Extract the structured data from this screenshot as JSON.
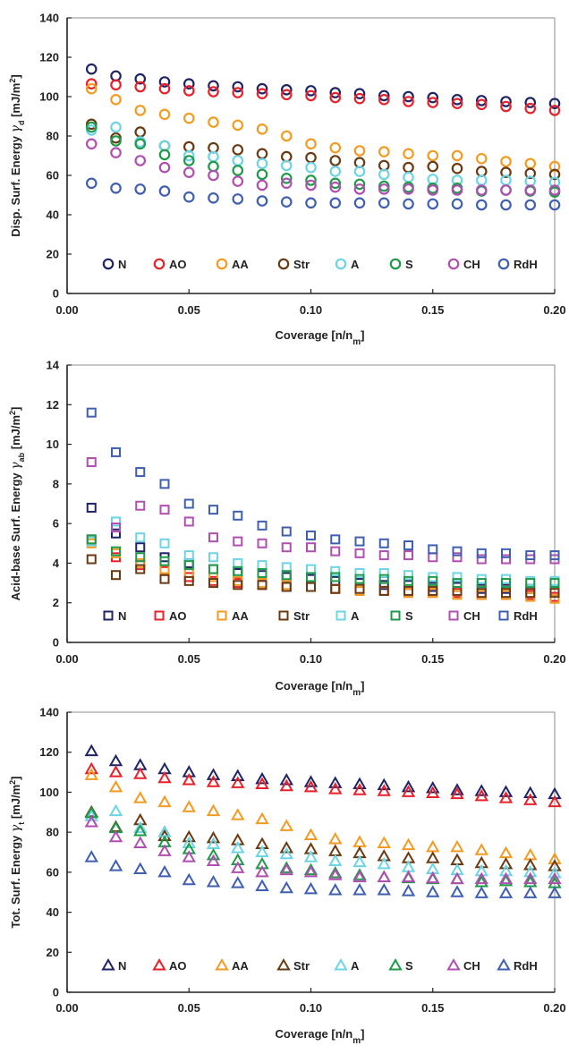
{
  "chart_data": [
    {
      "type": "scatter",
      "marker": "circle",
      "xlabel": "Coverage [n/n",
      "xlabel_sub": "m",
      "xlabel_end": "]",
      "ylabel": "Disp. Surf. Energy ",
      "ylabel_sym": "γ",
      "ylabel_sub": "d",
      "ylabel_end": " [mJ/m",
      "ylabel_sup": "2",
      "ylabel_close": "]",
      "xlim": [
        0,
        0.2
      ],
      "ylim": [
        0,
        140
      ],
      "xticks": [
        "0.00",
        "0.05",
        "0.10",
        "0.15",
        "0.20"
      ],
      "yticks": [
        "0",
        "20",
        "40",
        "60",
        "80",
        "100",
        "120",
        "140"
      ],
      "legend_position": "bottom-inside",
      "grid": false,
      "x": [
        0.01,
        0.02,
        0.03,
        0.04,
        0.05,
        0.06,
        0.07,
        0.08,
        0.09,
        0.1,
        0.11,
        0.12,
        0.13,
        0.14,
        0.15,
        0.16,
        0.17,
        0.18,
        0.19,
        0.2
      ],
      "series": [
        {
          "name": "N",
          "color": "#1f2466",
          "values": [
            114,
            110.5,
            109,
            107.5,
            106.5,
            105.5,
            105,
            104,
            103.5,
            103,
            102,
            101.5,
            100.5,
            100,
            99.5,
            98.5,
            98,
            97.5,
            97,
            96.5
          ]
        },
        {
          "name": "AO",
          "color": "#e8212a",
          "values": [
            106.5,
            106,
            105,
            104,
            103,
            102.5,
            102,
            101.5,
            101,
            100.5,
            99.5,
            99,
            98.5,
            97.5,
            97,
            96.5,
            96,
            95,
            94,
            93
          ]
        },
        {
          "name": "AA",
          "color": "#f39b21",
          "values": [
            104,
            98.5,
            93,
            91,
            89,
            87,
            85.5,
            83.5,
            80,
            76,
            74,
            72.5,
            72,
            71,
            70,
            70,
            68.5,
            67,
            66,
            64.5
          ]
        },
        {
          "name": "Str",
          "color": "#6b3a12",
          "values": [
            86,
            79,
            82,
            75,
            74.5,
            74,
            73,
            71,
            69.5,
            69,
            67.5,
            66.5,
            65,
            64,
            64.5,
            63.5,
            62,
            61.5,
            61,
            60.5
          ]
        },
        {
          "name": "A",
          "color": "#6dd3e6",
          "values": [
            83,
            84.5,
            77,
            75,
            70,
            69.5,
            67.5,
            66,
            65,
            64,
            62,
            62,
            60.5,
            59,
            58,
            57.5,
            57.5,
            57.5,
            57,
            56.5
          ]
        },
        {
          "name": "S",
          "color": "#1e9a4a",
          "values": [
            84.5,
            77.5,
            76,
            70.5,
            67.5,
            64.5,
            62.5,
            60.5,
            58.5,
            57.5,
            56,
            55.5,
            54.5,
            54,
            53.5,
            53.5,
            52,
            52.5,
            52,
            51.5
          ]
        },
        {
          "name": "CH",
          "color": "#b04fb0",
          "values": [
            76,
            71.5,
            67.5,
            64,
            61.5,
            60,
            57,
            55,
            56,
            55,
            54,
            53,
            53,
            53,
            52.5,
            52.5,
            52.5,
            52.5,
            52.5,
            52.5
          ]
        },
        {
          "name": "RdH",
          "color": "#3f5fb0",
          "values": [
            56,
            53.5,
            53,
            52,
            49,
            48.5,
            48,
            47,
            46.5,
            46,
            46,
            46,
            46,
            45.5,
            45.5,
            45.5,
            45,
            45,
            45,
            45
          ]
        }
      ]
    },
    {
      "type": "scatter",
      "marker": "square",
      "xlabel": "Coverage [n/n",
      "xlabel_sub": "m",
      "xlabel_end": "]",
      "ylabel": "Acid-base Surf. Energy ",
      "ylabel_sym": "γ",
      "ylabel_sub": "ab",
      "ylabel_end": " [mJ/m",
      "ylabel_sup": "2",
      "ylabel_close": "]",
      "xlim": [
        0,
        0.2
      ],
      "ylim": [
        0,
        14
      ],
      "xticks": [
        "0.00",
        "0.05",
        "0.10",
        "0.15",
        "0.20"
      ],
      "yticks": [
        "0",
        "2",
        "4",
        "6",
        "8",
        "10",
        "12",
        "14"
      ],
      "legend_position": "bottom-inside",
      "grid": false,
      "x": [
        0.01,
        0.02,
        0.03,
        0.04,
        0.05,
        0.06,
        0.07,
        0.08,
        0.09,
        0.1,
        0.11,
        0.12,
        0.13,
        0.14,
        0.15,
        0.16,
        0.17,
        0.18,
        0.19,
        0.2
      ],
      "series": [
        {
          "name": "N",
          "color": "#1f2466",
          "values": [
            6.8,
            5.5,
            4.8,
            4.3,
            4.0,
            3.7,
            3.5,
            3.4,
            3.3,
            3.2,
            3.1,
            3.0,
            2.9,
            2.9,
            2.8,
            2.8,
            2.7,
            2.7,
            2.7,
            2.6
          ]
        },
        {
          "name": "AO",
          "color": "#e8212a",
          "values": [
            5.2,
            4.3,
            3.9,
            3.6,
            3.3,
            3.1,
            3.0,
            2.9,
            2.8,
            2.8,
            2.7,
            2.6,
            2.6,
            2.5,
            2.5,
            2.5,
            2.4,
            2.4,
            2.4,
            2.3
          ]
        },
        {
          "name": "AA",
          "color": "#f39b21",
          "values": [
            5.0,
            4.5,
            4.0,
            3.7,
            3.5,
            3.3,
            3.1,
            3.0,
            2.9,
            2.8,
            2.7,
            2.6,
            2.6,
            2.5,
            2.5,
            2.4,
            2.4,
            2.4,
            2.3,
            2.2
          ]
        },
        {
          "name": "Str",
          "color": "#6b3a12",
          "values": [
            4.2,
            3.4,
            3.7,
            3.2,
            3.1,
            3.0,
            2.9,
            2.9,
            2.8,
            2.8,
            2.7,
            2.7,
            2.6,
            2.6,
            2.6,
            2.6,
            2.5,
            2.5,
            2.5,
            2.5
          ]
        },
        {
          "name": "A",
          "color": "#6dd3e6",
          "values": [
            5.1,
            6.1,
            5.3,
            5.0,
            4.4,
            4.3,
            4.0,
            3.9,
            3.8,
            3.7,
            3.6,
            3.5,
            3.5,
            3.4,
            3.3,
            3.3,
            3.2,
            3.2,
            3.1,
            3.1
          ]
        },
        {
          "name": "S",
          "color": "#1e9a4a",
          "values": [
            5.2,
            4.6,
            4.3,
            4.1,
            3.9,
            3.7,
            3.6,
            3.5,
            3.4,
            3.3,
            3.3,
            3.2,
            3.2,
            3.1,
            3.1,
            3.0,
            3.0,
            3.0,
            3.0,
            3.0
          ]
        },
        {
          "name": "CH",
          "color": "#b04fb0",
          "values": [
            9.1,
            5.8,
            6.9,
            6.7,
            6.1,
            5.3,
            5.1,
            5.0,
            4.8,
            4.8,
            4.6,
            4.5,
            4.4,
            4.4,
            4.3,
            4.3,
            4.2,
            4.2,
            4.2,
            4.2
          ]
        },
        {
          "name": "RdH",
          "color": "#3f5fb0",
          "values": [
            11.6,
            9.6,
            8.6,
            8.0,
            7.0,
            6.7,
            6.4,
            5.9,
            5.6,
            5.4,
            5.2,
            5.1,
            5.0,
            4.9,
            4.7,
            4.6,
            4.5,
            4.5,
            4.4,
            4.4
          ]
        }
      ]
    },
    {
      "type": "scatter",
      "marker": "triangle",
      "xlabel": "Coverage [n/n",
      "xlabel_sub": "m",
      "xlabel_end": "]",
      "ylabel": "Tot. Surf. Energy ",
      "ylabel_sym": "γ",
      "ylabel_sub": "t",
      "ylabel_end": " [mJ/m",
      "ylabel_sup": "2",
      "ylabel_close": "]",
      "xlim": [
        0,
        0.2
      ],
      "ylim": [
        0,
        140
      ],
      "xticks": [
        "0.00",
        "0.05",
        "0.10",
        "0.15",
        "0.20"
      ],
      "yticks": [
        "0",
        "20",
        "40",
        "60",
        "80",
        "100",
        "120",
        "140"
      ],
      "legend_position": "bottom-inside",
      "grid": false,
      "x": [
        0.01,
        0.02,
        0.03,
        0.04,
        0.05,
        0.06,
        0.07,
        0.08,
        0.09,
        0.1,
        0.11,
        0.12,
        0.13,
        0.14,
        0.15,
        0.16,
        0.17,
        0.18,
        0.19,
        0.2
      ],
      "series": [
        {
          "name": "N",
          "color": "#1f2466",
          "values": [
            120.5,
            115.5,
            113.5,
            111.5,
            110,
            108.5,
            108,
            106.5,
            106,
            105,
            104.5,
            104,
            103.5,
            102.5,
            102,
            101,
            100.5,
            100,
            99.5,
            99
          ]
        },
        {
          "name": "AO",
          "color": "#e8212a",
          "values": [
            111.5,
            110,
            109,
            107,
            106,
            105,
            104.5,
            104,
            103,
            102.5,
            101.5,
            101,
            100.5,
            100,
            99.5,
            99,
            98,
            97,
            96,
            95
          ]
        },
        {
          "name": "AA",
          "color": "#f39b21",
          "values": [
            108.5,
            102.5,
            97,
            95,
            92.5,
            90.5,
            88.5,
            86.5,
            83,
            78.5,
            76.5,
            75,
            74.5,
            73.5,
            72.5,
            72.5,
            71,
            69.5,
            68.5,
            66.5
          ]
        },
        {
          "name": "Str",
          "color": "#6b3a12",
          "values": [
            90,
            82.5,
            86,
            78,
            77.5,
            77,
            76,
            74,
            72,
            71.5,
            70.5,
            69.5,
            68,
            67,
            67,
            66,
            64.5,
            64,
            63.5,
            63
          ]
        },
        {
          "name": "A",
          "color": "#6dd3e6",
          "values": [
            88,
            90.5,
            82,
            80,
            74.5,
            74,
            72,
            70,
            69,
            67.5,
            65.5,
            65,
            64,
            62.5,
            61.5,
            61,
            60.5,
            60.5,
            60,
            59.5
          ]
        },
        {
          "name": "S",
          "color": "#1e9a4a",
          "values": [
            89.5,
            82,
            80.5,
            75,
            71.5,
            68.5,
            66,
            64,
            62,
            61,
            59.5,
            58.5,
            57.5,
            57,
            56.5,
            56.5,
            55,
            55.5,
            55,
            54.5
          ]
        },
        {
          "name": "CH",
          "color": "#b04fb0",
          "values": [
            85,
            77.5,
            74.5,
            70.5,
            67.5,
            65.5,
            62,
            60,
            61,
            60,
            58.5,
            57.5,
            57.5,
            57.5,
            57,
            56.5,
            56.5,
            56.5,
            56.5,
            56.5
          ]
        },
        {
          "name": "RdH",
          "color": "#3f5fb0",
          "values": [
            67.5,
            63,
            61.5,
            60,
            56,
            55,
            54.5,
            53,
            52,
            51.5,
            51,
            51,
            51,
            50.5,
            50,
            50,
            49.5,
            49.5,
            49.5,
            49.5
          ]
        }
      ]
    }
  ]
}
